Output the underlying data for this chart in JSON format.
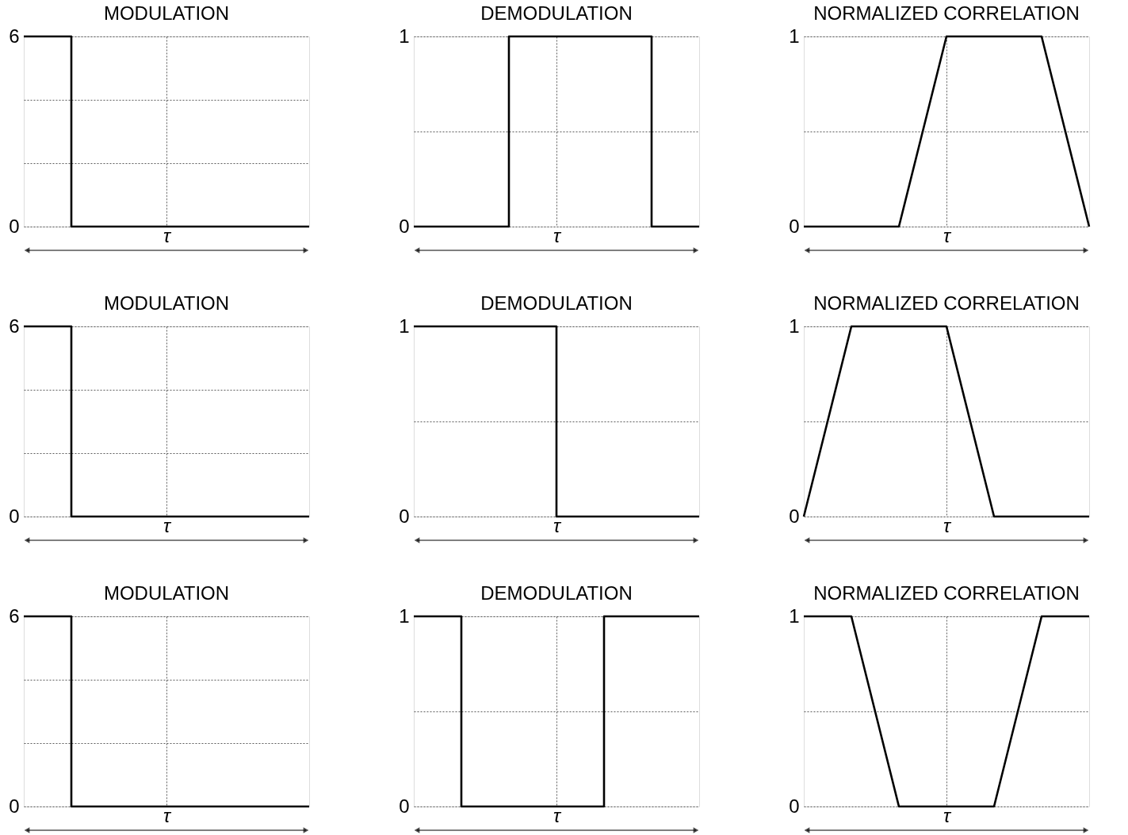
{
  "chart_data": [
    {
      "type": "step",
      "title": "MODULATION",
      "xlabel": "τ",
      "categories": [
        null,
        null,
        null,
        null,
        null,
        null,
        null
      ],
      "series": [
        {
          "color": "#000000",
          "values": [
            6,
            0,
            0,
            0,
            0,
            0,
            0
          ]
        }
      ],
      "ylim": [
        0,
        6
      ],
      "yticks": [
        0,
        {
          "value": 2,
          "label": null
        },
        {
          "value": 4,
          "label": null
        },
        6
      ],
      "grid": true
    },
    {
      "type": "step",
      "title": "DEMODULATION",
      "xlabel": "τ",
      "categories": [
        null,
        null,
        null,
        null,
        null,
        null,
        null
      ],
      "series": [
        {
          "color": "#000000",
          "values": [
            0,
            0,
            1,
            1,
            1,
            0,
            0
          ]
        }
      ],
      "ylim": [
        0,
        1
      ],
      "yticks": [
        0,
        {
          "value": 0.5,
          "label": null
        },
        1
      ],
      "grid": true
    },
    {
      "type": "line",
      "title": "NORMALIZED  CORRELATION",
      "xlabel": "τ",
      "categories": [
        null,
        null,
        null,
        null,
        null,
        null,
        null
      ],
      "series": [
        {
          "color": "#000000",
          "values": [
            0,
            0,
            0,
            1,
            1,
            1,
            0
          ]
        }
      ],
      "ylim": [
        0,
        1
      ],
      "yticks": [
        0,
        {
          "value": 0.5,
          "label": null
        },
        1
      ],
      "grid": true
    },
    {
      "type": "step",
      "title": "MODULATION",
      "xlabel": "τ",
      "categories": [
        null,
        null,
        null,
        null,
        null,
        null,
        null
      ],
      "series": [
        {
          "color": "#000000",
          "values": [
            6,
            0,
            0,
            0,
            0,
            0,
            0
          ]
        }
      ],
      "ylim": [
        0,
        6
      ],
      "yticks": [
        0,
        {
          "value": 2,
          "label": null
        },
        {
          "value": 4,
          "label": null
        },
        6
      ],
      "grid": true
    },
    {
      "type": "step",
      "title": "DEMODULATION",
      "xlabel": "τ",
      "categories": [
        null,
        null,
        null,
        null,
        null,
        null,
        null
      ],
      "series": [
        {
          "color": "#000000",
          "values": [
            1,
            1,
            1,
            0,
            0,
            0,
            0
          ]
        }
      ],
      "ylim": [
        0,
        1
      ],
      "yticks": [
        0,
        {
          "value": 0.5,
          "label": null
        },
        1
      ],
      "grid": true
    },
    {
      "type": "line",
      "title": "NORMALIZED  CORRELATION",
      "xlabel": "τ",
      "categories": [
        null,
        null,
        null,
        null,
        null,
        null,
        null
      ],
      "series": [
        {
          "color": "#000000",
          "values": [
            0,
            1,
            1,
            1,
            0,
            0,
            0
          ]
        }
      ],
      "ylim": [
        0,
        1
      ],
      "yticks": [
        0,
        {
          "value": 0.5,
          "label": null
        },
        1
      ],
      "grid": true
    },
    {
      "type": "step",
      "title": "MODULATION",
      "xlabel": "τ",
      "categories": [
        null,
        null,
        null,
        null,
        null,
        null,
        null
      ],
      "series": [
        {
          "color": "#000000",
          "values": [
            6,
            0,
            0,
            0,
            0,
            0,
            0
          ]
        }
      ],
      "ylim": [
        0,
        6
      ],
      "yticks": [
        0,
        {
          "value": 2,
          "label": null
        },
        {
          "value": 4,
          "label": null
        },
        6
      ],
      "grid": true
    },
    {
      "type": "step",
      "title": "DEMODULATION",
      "xlabel": "τ",
      "categories": [
        null,
        null,
        null,
        null,
        null,
        null,
        null
      ],
      "series": [
        {
          "color": "#000000",
          "values": [
            1,
            0,
            0,
            0,
            1,
            1,
            1
          ]
        }
      ],
      "ylim": [
        0,
        1
      ],
      "yticks": [
        0,
        {
          "value": 0.5,
          "label": null
        },
        1
      ],
      "grid": true
    },
    {
      "type": "line",
      "title": "NORMALIZED  CORRELATION",
      "xlabel": "τ",
      "categories": [
        null,
        null,
        null,
        null,
        null,
        null,
        null
      ],
      "series": [
        {
          "color": "#000000",
          "values": [
            1,
            1,
            0,
            0,
            0,
            1,
            1
          ]
        }
      ],
      "ylim": [
        0,
        1
      ],
      "yticks": [
        0,
        {
          "value": 0.5,
          "label": null
        },
        1
      ],
      "grid": true
    }
  ]
}
